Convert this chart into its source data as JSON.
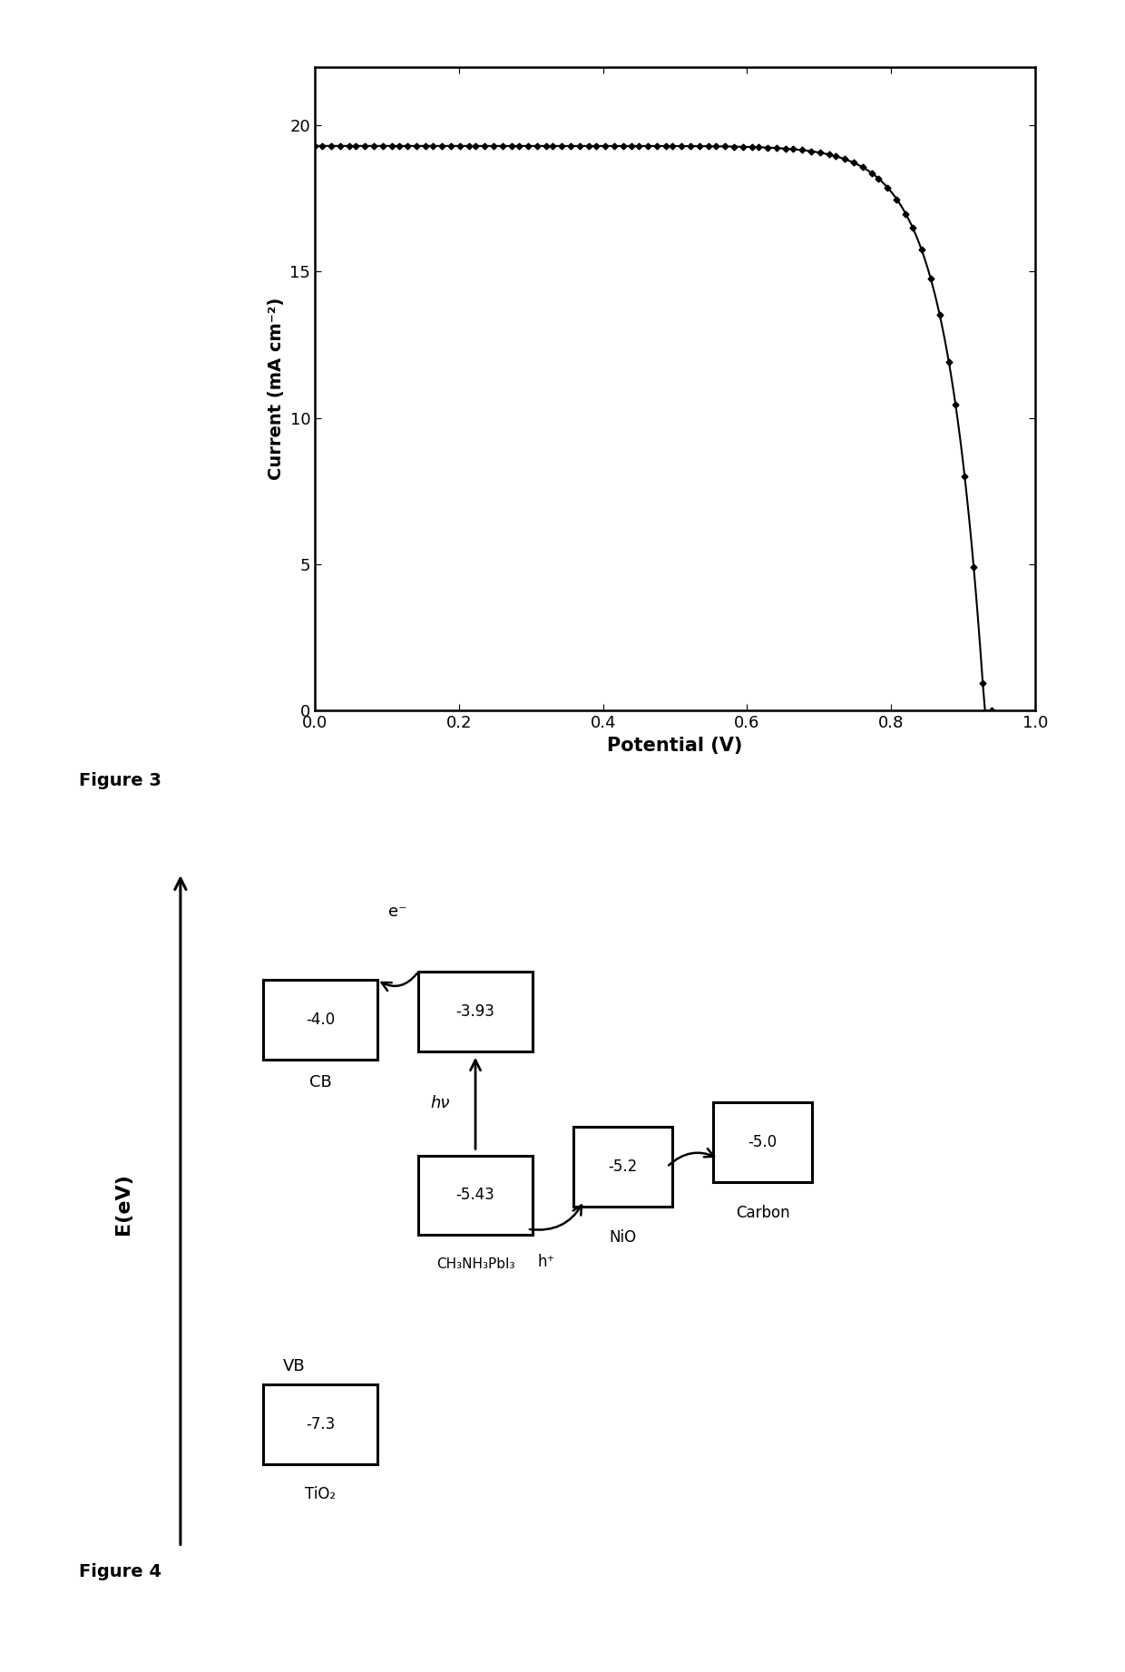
{
  "fig_width": 12.4,
  "fig_height": 18.43,
  "bg_color": "#ffffff",
  "plot1": {
    "xlabel": "Potential (V)",
    "ylabel": "Current (mA cm⁻²)",
    "xlim": [
      0.0,
      1.0
    ],
    "ylim": [
      0,
      22
    ],
    "xticks": [
      0.0,
      0.2,
      0.4,
      0.6,
      0.8,
      1.0
    ],
    "yticks": [
      0,
      5,
      10,
      15,
      20
    ],
    "jsc": 19.3,
    "voc": 0.93,
    "n_diode": 2.0
  },
  "fig3_label": "Figure 3",
  "fig4_label": "Figure 4",
  "diagram": {
    "tio2_cb_val": "-4.0",
    "tio2_vb_val": "-7.3",
    "perov_cb_val": "-3.93",
    "perov_vb_val": "-5.43",
    "nio_vb_val": "-5.2",
    "carbon_vb_val": "-5.0",
    "y_axis_label": "E(eV)",
    "cb_label": "CB",
    "vb_label": "VB",
    "tio2_label": "TiO₂",
    "perov_label": "CH₃NH₃PbI₃",
    "nio_label": "NiO",
    "carbon_label": "Carbon",
    "hv_label": "hν",
    "e_label": "e⁻",
    "h_label": "h⁺"
  }
}
